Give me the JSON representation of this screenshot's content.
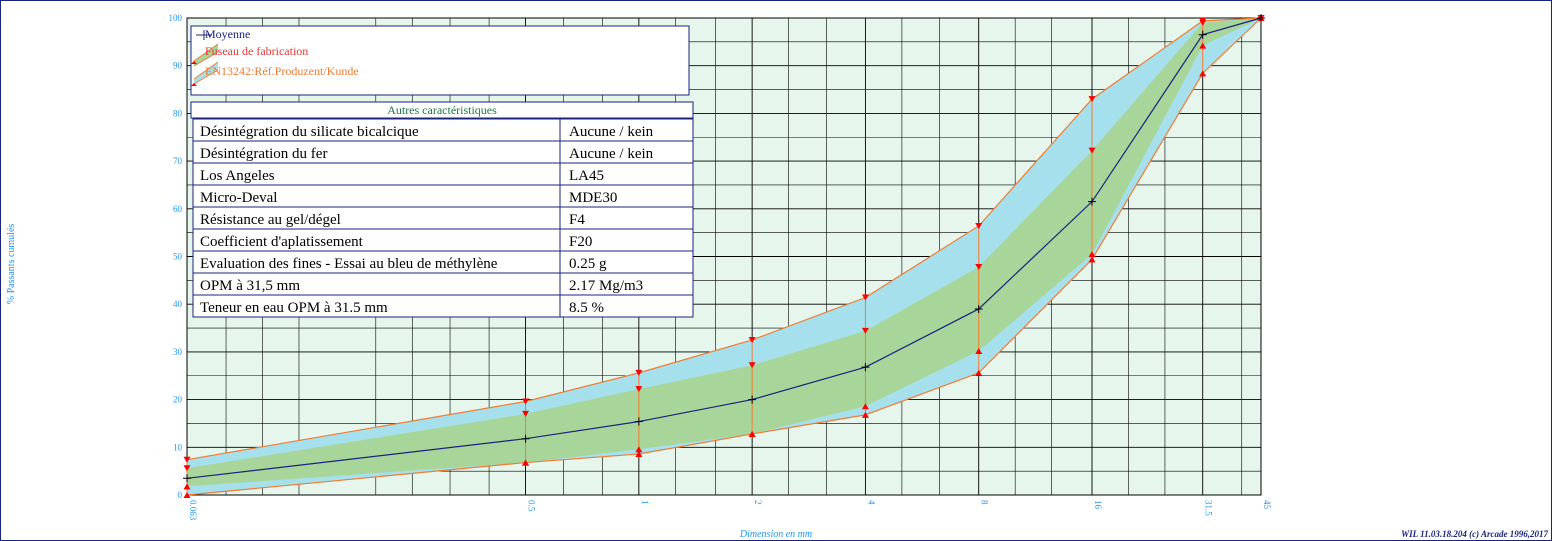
{
  "chart_data": {
    "type": "area",
    "ylabel": "% Passants cumulés",
    "xlabel": "Dimension en mm",
    "footer": "WIL 11.03.18.204 (c) Arcade 1996,2017",
    "x_scale": "log",
    "ylim": [
      0,
      100
    ],
    "y_ticks": [
      "0",
      "10",
      "20",
      "30",
      "40",
      "50",
      "60",
      "70",
      "80",
      "90",
      "100"
    ],
    "x_tick_labels": [
      "0.063",
      "0.5",
      "1",
      "2",
      "4",
      "8",
      "16",
      "31.5",
      "45"
    ],
    "x": [
      0.063,
      0.5,
      1,
      2,
      4,
      8,
      16,
      31.5,
      45
    ],
    "series": [
      {
        "name": "Moyenne",
        "values": [
          3.5,
          11.8,
          15.4,
          20,
          26.8,
          39,
          61.5,
          96.5,
          100
        ]
      },
      {
        "name": "Fuseau de fabrication",
        "lower": [
          1.8,
          6.8,
          9.6,
          12.8,
          18.6,
          30.2,
          50.5,
          94.2,
          100
        ],
        "upper": [
          5.6,
          17,
          22.2,
          27.2,
          34.4,
          47.8,
          72.2,
          99,
          100
        ]
      },
      {
        "name": "EN13242:Réf.Produzent/Kunde",
        "lower": [
          0,
          6.8,
          8.6,
          12.8,
          16.8,
          25.6,
          49.4,
          88.4,
          100
        ],
        "upper": [
          7.4,
          19.6,
          25.6,
          32.5,
          41.4,
          56.4,
          83,
          99.4,
          100
        ]
      }
    ],
    "grid": true,
    "legend": "top-left",
    "colors": {
      "mean": "#1a237e",
      "fuseau": "#a8d59a",
      "envelope": "#a6e0ec",
      "background": "#e6f6ec",
      "bounds": "#f07c32",
      "markers": "#ff0000"
    }
  },
  "table": {
    "title": "Autres caractéristiques",
    "rows": [
      {
        "label": "Désintégration du silicate bicalcique",
        "value": "Aucune / kein"
      },
      {
        "label": "Désintégration du fer",
        "value": "Aucune / kein"
      },
      {
        "label": "Los Angeles",
        "value": "LA45"
      },
      {
        "label": "Micro-Deval",
        "value": "MDE30"
      },
      {
        "label": "Résistance au gel/dégel",
        "value": "F4"
      },
      {
        "label": "Coefficient d'aplatissement",
        "value": "F20"
      },
      {
        "label": "Evaluation des fines - Essai au bleu de méthylène",
        "value": "0.25 g"
      },
      {
        "label": "OPM à 31,5 mm",
        "value": "2.17 Mg/m3"
      },
      {
        "label": "Teneur en eau OPM à 31.5 mm",
        "value": "8.5 %"
      }
    ]
  }
}
